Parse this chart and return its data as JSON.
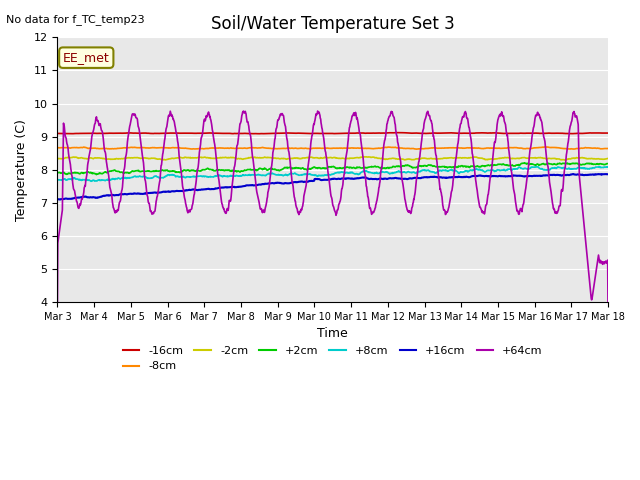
{
  "title": "Soil/Water Temperature Set 3",
  "xlabel": "Time",
  "ylabel": "Temperature (C)",
  "no_data_text": "No data for f_TC_temp23",
  "annotation_text": "EE_met",
  "ylim": [
    4.0,
    12.0
  ],
  "yticks": [
    4.0,
    5.0,
    6.0,
    7.0,
    8.0,
    9.0,
    10.0,
    11.0,
    12.0
  ],
  "n_days": 15,
  "series_colors": {
    "-16cm": "#cc0000",
    "-8cm": "#ff8800",
    "-2cm": "#cccc00",
    "+2cm": "#00cc00",
    "+8cm": "#00cccc",
    "+16cm": "#0000cc",
    "+64cm": "#aa00aa"
  },
  "bg_color": "#e8e8e8",
  "fig_color": "#ffffff"
}
